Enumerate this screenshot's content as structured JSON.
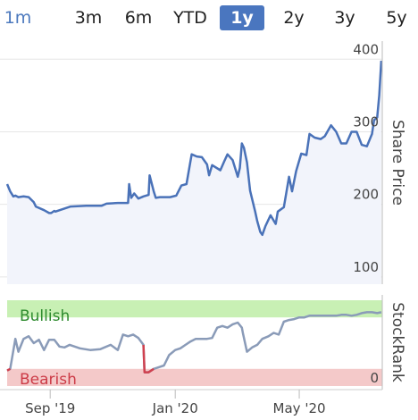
{
  "range_selector": {
    "buttons": [
      "1m",
      "3m",
      "6m",
      "YTD",
      "1y",
      "2y",
      "3y",
      "5y"
    ],
    "selected": "1y"
  },
  "colors": {
    "price_line": "#4a72b8",
    "price_fill": "#f2f4fb",
    "stockrank_line": "#8a9bb8",
    "stockrank_bearish_line": "#d0414f",
    "bullish_band": "#c8f0b4",
    "bearish_band": "#f4c9c9",
    "bullish_text": "#2e8b2e",
    "bearish_text": "#cc3b47",
    "grid": "#e6e6e6"
  },
  "chart_data": [
    {
      "type": "area",
      "ylabel": "Share Price",
      "y_ticks": [
        100,
        200,
        300,
        400
      ],
      "ylim": [
        90,
        425
      ],
      "xlim": [
        "2019-07-21",
        "2020-07-21"
      ],
      "grid": "horizontal",
      "x": [
        "2019-07-21",
        "2019-07-24",
        "2019-07-27",
        "2019-07-29",
        "2019-08-01",
        "2019-08-06",
        "2019-08-11",
        "2019-08-16",
        "2019-08-18",
        "2019-08-26",
        "2019-08-31",
        "2019-09-02",
        "2019-09-05",
        "2019-09-06",
        "2019-09-21",
        "2019-10-06",
        "2019-10-21",
        "2019-10-26",
        "2019-11-06",
        "2019-11-16",
        "2019-11-17",
        "2019-11-19",
        "2019-11-22",
        "2019-11-26",
        "2019-12-01",
        "2019-12-06",
        "2019-12-07",
        "2019-12-11",
        "2019-12-13",
        "2019-12-17",
        "2019-12-23",
        "2019-12-27",
        "2020-01-02",
        "2020-01-07",
        "2020-01-12",
        "2020-01-17",
        "2020-01-22",
        "2020-01-27",
        "2020-02-01",
        "2020-02-03",
        "2020-02-06",
        "2020-02-14",
        "2020-02-18",
        "2020-02-21",
        "2020-02-26",
        "2020-03-02",
        "2020-03-04",
        "2020-03-06",
        "2020-03-08",
        "2020-03-11",
        "2020-03-14",
        "2020-03-19",
        "2020-03-21",
        "2020-03-24",
        "2020-03-26",
        "2020-03-29",
        "2020-04-03",
        "2020-04-08",
        "2020-04-10",
        "2020-04-16",
        "2020-04-21",
        "2020-04-24",
        "2020-04-28",
        "2020-05-03",
        "2020-05-08",
        "2020-05-11",
        "2020-05-16",
        "2020-05-22",
        "2020-05-26",
        "2020-06-01",
        "2020-06-06",
        "2020-06-11",
        "2020-06-16",
        "2020-06-21",
        "2020-06-26",
        "2020-07-01",
        "2020-07-06",
        "2020-07-11",
        "2020-07-13",
        "2020-07-16",
        "2020-07-18",
        "2020-07-20"
      ],
      "y": [
        228,
        218,
        211,
        212,
        210,
        211,
        210,
        203,
        197,
        192,
        188,
        188,
        191,
        190,
        197,
        198,
        198,
        201,
        202,
        202,
        228,
        209,
        215,
        208,
        211,
        213,
        240,
        218,
        209,
        210,
        210,
        210,
        212,
        226,
        228,
        269,
        266,
        265,
        255,
        240,
        254,
        247,
        260,
        269,
        261,
        238,
        250,
        284,
        278,
        258,
        219,
        190,
        177,
        162,
        158,
        170,
        185,
        173,
        190,
        196,
        238,
        218,
        246,
        270,
        268,
        297,
        292,
        290,
        294,
        309,
        300,
        284,
        284,
        300,
        300,
        282,
        280,
        297,
        316,
        320,
        350,
        398
      ]
    },
    {
      "type": "line",
      "ylabel": "StockRank",
      "y_tick_labels": [
        "0"
      ],
      "bands": [
        {
          "label": "Bullish",
          "from": 80,
          "to": 100
        },
        {
          "label": "Bearish",
          "from": 0,
          "to": 20
        }
      ],
      "ylim": [
        0,
        100
      ],
      "x_tick_labels": [
        "Sep '19",
        "Jan '20",
        "May '20"
      ],
      "x_ticks": [
        "2019-09-01",
        "2020-01-01",
        "2020-05-01"
      ],
      "xlim": [
        "2019-07-21",
        "2020-07-21"
      ],
      "x": [
        "2019-07-21",
        "2019-07-24",
        "2019-07-29",
        "2019-08-01",
        "2019-08-06",
        "2019-08-11",
        "2019-08-16",
        "2019-08-21",
        "2019-08-26",
        "2019-08-31",
        "2019-09-05",
        "2019-09-10",
        "2019-09-15",
        "2019-09-20",
        "2019-09-30",
        "2019-10-10",
        "2019-10-20",
        "2019-10-30",
        "2019-11-06",
        "2019-11-11",
        "2019-11-16",
        "2019-11-21",
        "2019-11-26",
        "2019-12-01",
        "2019-12-02",
        "2019-12-06",
        "2019-12-11",
        "2019-12-16",
        "2019-12-21",
        "2019-12-26",
        "2020-01-01",
        "2020-01-06",
        "2020-01-11",
        "2020-01-16",
        "2020-01-21",
        "2020-01-26",
        "2020-02-01",
        "2020-02-06",
        "2020-02-11",
        "2020-02-16",
        "2020-02-21",
        "2020-02-26",
        "2020-03-02",
        "2020-03-06",
        "2020-03-07",
        "2020-03-11",
        "2020-03-16",
        "2020-03-21",
        "2020-03-26",
        "2020-04-01",
        "2020-04-06",
        "2020-04-11",
        "2020-04-16",
        "2020-04-21",
        "2020-04-26",
        "2020-05-01",
        "2020-05-06",
        "2020-05-11",
        "2020-05-16",
        "2020-05-21",
        "2020-05-26",
        "2020-06-01",
        "2020-06-06",
        "2020-06-11",
        "2020-06-16",
        "2020-06-21",
        "2020-06-26",
        "2020-07-01",
        "2020-07-06",
        "2020-07-11",
        "2020-07-16",
        "2020-07-20"
      ],
      "y": [
        18,
        20,
        55,
        40,
        55,
        58,
        50,
        54,
        42,
        54,
        54,
        46,
        45,
        48,
        44,
        42,
        43,
        48,
        42,
        60,
        58,
        60,
        56,
        48,
        16,
        16,
        20,
        22,
        24,
        36,
        42,
        44,
        48,
        52,
        55,
        55,
        55,
        56,
        68,
        70,
        68,
        72,
        74,
        68,
        62,
        40,
        45,
        48,
        55,
        58,
        62,
        60,
        75,
        77,
        78,
        80,
        80,
        82,
        82,
        82,
        82,
        82,
        82,
        83,
        83,
        82,
        83,
        85,
        86,
        86,
        85,
        86
      ]
    }
  ]
}
